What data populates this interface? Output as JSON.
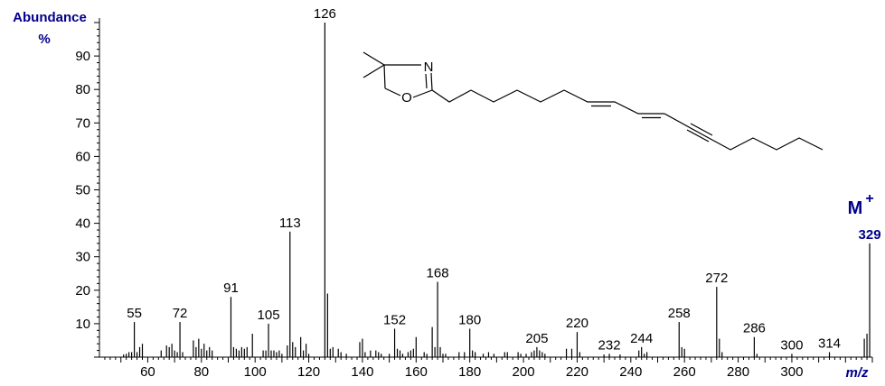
{
  "colors": {
    "accent": "#00008b",
    "axis": "#000000",
    "bars": "#000000"
  },
  "chart_data": {
    "type": "bar",
    "ylabel": "Abundance",
    "ylabel_unit": "%",
    "xlabel": "m/z",
    "ylim": [
      0,
      100
    ],
    "xlim": [
      42,
      330
    ],
    "y_ticks": [
      10,
      20,
      30,
      40,
      50,
      60,
      70,
      80,
      90
    ],
    "x_ticks": [
      60,
      80,
      100,
      120,
      140,
      160,
      180,
      200,
      220,
      240,
      260,
      280,
      300
    ],
    "molecular_ion": {
      "label": "M",
      "charge": "+",
      "mz": 329
    },
    "peak_labels": [
      55,
      72,
      91,
      105,
      113,
      126,
      152,
      168,
      180,
      205,
      220,
      232,
      244,
      258,
      272,
      286,
      300,
      314
    ],
    "peaks": [
      [
        51,
        0.8
      ],
      [
        52,
        1.0
      ],
      [
        53,
        1.5
      ],
      [
        54,
        1.5
      ],
      [
        55,
        10.5
      ],
      [
        56,
        1.5
      ],
      [
        57,
        3.0
      ],
      [
        58,
        4.0
      ],
      [
        65,
        2.0
      ],
      [
        67,
        3.5
      ],
      [
        68,
        3.0
      ],
      [
        69,
        4.0
      ],
      [
        70,
        2.0
      ],
      [
        71,
        1.5
      ],
      [
        72,
        10.5
      ],
      [
        73,
        1.5
      ],
      [
        77,
        5.0
      ],
      [
        78,
        3.0
      ],
      [
        79,
        5.5
      ],
      [
        80,
        2.5
      ],
      [
        81,
        4.0
      ],
      [
        82,
        2.0
      ],
      [
        83,
        3.0
      ],
      [
        84,
        2.0
      ],
      [
        91,
        18.0
      ],
      [
        92,
        3.0
      ],
      [
        93,
        2.5
      ],
      [
        94,
        2.0
      ],
      [
        95,
        3.0
      ],
      [
        96,
        2.5
      ],
      [
        97,
        3.0
      ],
      [
        99,
        7.0
      ],
      [
        103,
        2.0
      ],
      [
        104,
        2.0
      ],
      [
        105,
        10.0
      ],
      [
        106,
        2.0
      ],
      [
        107,
        2.0
      ],
      [
        108,
        1.5
      ],
      [
        109,
        2.0
      ],
      [
        110,
        1.0
      ],
      [
        112,
        3.5
      ],
      [
        113,
        37.5
      ],
      [
        114,
        4.5
      ],
      [
        115,
        3.0
      ],
      [
        117,
        6.0
      ],
      [
        118,
        2.0
      ],
      [
        119,
        4.0
      ],
      [
        120,
        1.0
      ],
      [
        126,
        100
      ],
      [
        127,
        19.0
      ],
      [
        128,
        2.5
      ],
      [
        129,
        3.0
      ],
      [
        131,
        2.5
      ],
      [
        132,
        1.5
      ],
      [
        134,
        1.0
      ],
      [
        139,
        4.5
      ],
      [
        140,
        5.5
      ],
      [
        141,
        1.5
      ],
      [
        143,
        2.0
      ],
      [
        145,
        2.0
      ],
      [
        146,
        1.5
      ],
      [
        147,
        1.0
      ],
      [
        150,
        1.0
      ],
      [
        152,
        8.5
      ],
      [
        153,
        2.5
      ],
      [
        154,
        2.0
      ],
      [
        155,
        1.0
      ],
      [
        157,
        1.5
      ],
      [
        158,
        2.0
      ],
      [
        159,
        2.5
      ],
      [
        160,
        6.0
      ],
      [
        163,
        1.5
      ],
      [
        164,
        1.0
      ],
      [
        166,
        9.0
      ],
      [
        167,
        3.0
      ],
      [
        168,
        22.5
      ],
      [
        169,
        3.0
      ],
      [
        170,
        1.0
      ],
      [
        171,
        1.0
      ],
      [
        176,
        1.5
      ],
      [
        178,
        1.5
      ],
      [
        180,
        8.5
      ],
      [
        181,
        2.0
      ],
      [
        182,
        1.5
      ],
      [
        185,
        1.0
      ],
      [
        187,
        1.5
      ],
      [
        189,
        1.0
      ],
      [
        193,
        1.5
      ],
      [
        194,
        1.5
      ],
      [
        198,
        1.5
      ],
      [
        199,
        1.0
      ],
      [
        201,
        1.0
      ],
      [
        203,
        1.5
      ],
      [
        204,
        2.0
      ],
      [
        205,
        3.0
      ],
      [
        206,
        2.0
      ],
      [
        207,
        1.5
      ],
      [
        208,
        1.0
      ],
      [
        216,
        2.5
      ],
      [
        218,
        2.5
      ],
      [
        220,
        7.5
      ],
      [
        221,
        1.5
      ],
      [
        230,
        0.8
      ],
      [
        232,
        1.0
      ],
      [
        236,
        0.8
      ],
      [
        243,
        2.0
      ],
      [
        244,
        3.0
      ],
      [
        245,
        1.0
      ],
      [
        246,
        1.5
      ],
      [
        258,
        10.5
      ],
      [
        259,
        3.0
      ],
      [
        260,
        2.5
      ],
      [
        272,
        21.0
      ],
      [
        273,
        5.5
      ],
      [
        274,
        1.5
      ],
      [
        286,
        6.0
      ],
      [
        287,
        1.0
      ],
      [
        300,
        1.0
      ],
      [
        314,
        1.5
      ],
      [
        327,
        5.5
      ],
      [
        328,
        7.0
      ],
      [
        329,
        34.0
      ]
    ]
  }
}
